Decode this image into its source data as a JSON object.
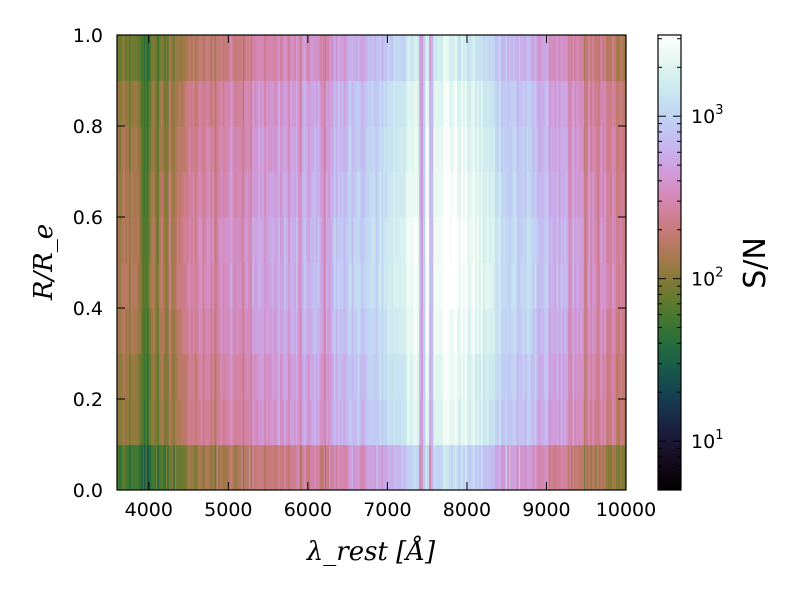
{
  "chart_data": {
    "type": "heatmap",
    "title": "",
    "xlabel": "λ_rest [Å]",
    "ylabel": "R/R_e",
    "xlim": [
      3600,
      10000
    ],
    "ylim": [
      0.0,
      1.0
    ],
    "xticks": [
      4000,
      5000,
      6000,
      7000,
      8000,
      9000,
      10000
    ],
    "xtick_labels": [
      "4000",
      "5000",
      "6000",
      "7000",
      "8000",
      "9000",
      "10000"
    ],
    "yticks": [
      0.0,
      0.2,
      0.4,
      0.6,
      0.8,
      1.0
    ],
    "ytick_labels": [
      "0.0",
      "0.2",
      "0.4",
      "0.6",
      "0.8",
      "1.0"
    ],
    "colorbar": {
      "label": "S/N",
      "scale": "log",
      "range": [
        5,
        3162
      ],
      "ticks": [
        10,
        100,
        1000
      ],
      "tick_labels": [
        "10",
        "10",
        "10"
      ],
      "tick_exponents": [
        "1",
        "2",
        "3"
      ],
      "colormap": "cubehelix"
    },
    "radial_bins": [
      0.0,
      0.1,
      0.2,
      0.3,
      0.4,
      0.5,
      0.6,
      0.7,
      0.8,
      0.9,
      1.0
    ],
    "radial_sn_scale": [
      0.42,
      0.8,
      0.86,
      1.0,
      1.1,
      1.08,
      0.98,
      0.9,
      0.82,
      0.62
    ],
    "sn_profile": {
      "wavelength": [
        3600,
        3800,
        4000,
        4200,
        4400,
        4600,
        4800,
        5000,
        5200,
        5400,
        5600,
        5800,
        6000,
        6200,
        6400,
        6600,
        6800,
        7000,
        7200,
        7400,
        7600,
        7800,
        8000,
        8200,
        8400,
        8600,
        8800,
        9000,
        9200,
        9400,
        9600,
        9800,
        10000
      ],
      "sn": [
        130,
        120,
        110,
        150,
        220,
        260,
        300,
        360,
        420,
        450,
        480,
        520,
        580,
        600,
        780,
        900,
        1050,
        1400,
        1900,
        2400,
        3000,
        3000,
        2400,
        1900,
        1400,
        1100,
        900,
        700,
        520,
        420,
        350,
        300,
        180
      ]
    },
    "absorption_features": [
      {
        "wavelength": 3935,
        "depth": 0.5
      },
      {
        "wavelength": 3970,
        "depth": 0.5
      },
      {
        "wavelength": 4101,
        "depth": 0.35
      },
      {
        "wavelength": 4226,
        "depth": 0.4
      },
      {
        "wavelength": 4300,
        "depth": 0.4
      },
      {
        "wavelength": 4340,
        "depth": 0.3
      },
      {
        "wavelength": 4861,
        "depth": 0.3
      },
      {
        "wavelength": 5175,
        "depth": 0.35
      },
      {
        "wavelength": 5270,
        "depth": 0.25
      },
      {
        "wavelength": 5890,
        "depth": 0.35
      },
      {
        "wavelength": 6210,
        "depth": 0.55
      },
      {
        "wavelength": 6280,
        "depth": 0.35
      },
      {
        "wavelength": 6563,
        "depth": 0.25
      },
      {
        "wavelength": 6870,
        "depth": 0.3
      },
      {
        "wavelength": 7430,
        "depth": 0.9
      },
      {
        "wavelength": 7460,
        "depth": 0.7
      },
      {
        "wavelength": 7560,
        "depth": 0.85
      },
      {
        "wavelength": 8500,
        "depth": 0.2
      },
      {
        "wavelength": 8542,
        "depth": 0.25
      },
      {
        "wavelength": 8662,
        "depth": 0.2
      },
      {
        "wavelength": 9300,
        "depth": 0.35
      },
      {
        "wavelength": 9500,
        "depth": 0.5
      },
      {
        "wavelength": 9650,
        "depth": 0.4
      }
    ]
  }
}
